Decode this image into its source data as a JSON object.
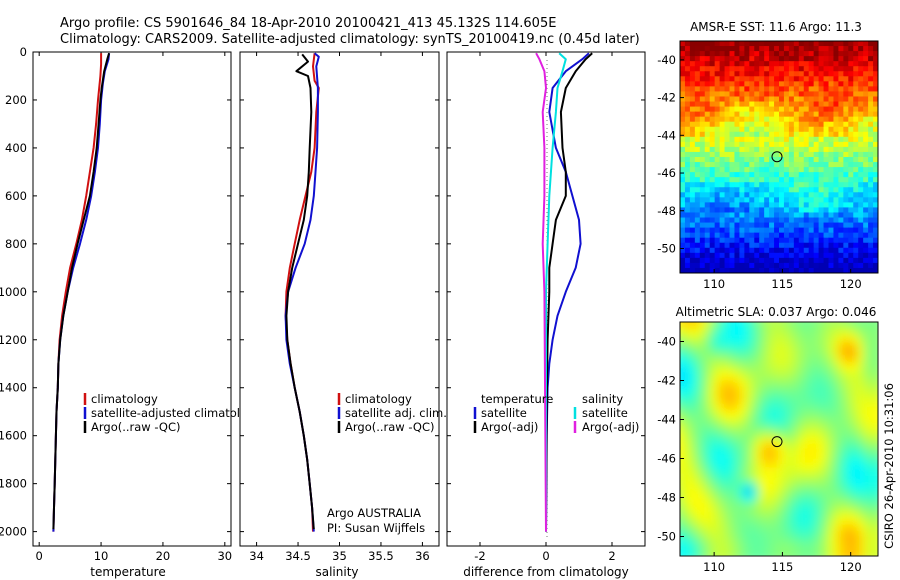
{
  "figure": {
    "title_line1": "Argo profile: CS 5901646_84 18-Apr-2010 20100421_413 45.132S 114.605E",
    "title_line2": "Climatology: CARS2009. Satellite-adjusted climatology: synTS_20100419.nc (0.45d later)",
    "side_text": "CSIRO 26-Apr-2010 10:31:06",
    "credit_line1": "Argo AUSTRALIA",
    "credit_line2": "PI: Susan Wijffels"
  },
  "colors": {
    "climatology": "#d01010",
    "satellite": "#1010d0",
    "argo": "#000000",
    "sat_sal": "#00e0e0",
    "argo_sal": "#e020e0",
    "dots": "#777777"
  },
  "chart_data": [
    {
      "type": "line",
      "xlabel": "temperature",
      "xlim": [
        -1,
        31
      ],
      "xticks": [
        0,
        10,
        20,
        30
      ],
      "ylim": [
        2060,
        0
      ],
      "yticks": [
        0,
        200,
        400,
        600,
        800,
        1000,
        1200,
        1400,
        1600,
        1800,
        2000
      ],
      "legend": [
        "climatology",
        "satellite-adjusted climatology",
        "Argo(..raw -QC)"
      ],
      "series": [
        {
          "name": "climatology",
          "color_key": "climatology",
          "points": [
            [
              10.0,
              5
            ],
            [
              10.0,
              50
            ],
            [
              9.9,
              100
            ],
            [
              9.7,
              150
            ],
            [
              9.5,
              200
            ],
            [
              9.2,
              300
            ],
            [
              8.8,
              400
            ],
            [
              8.2,
              500
            ],
            [
              7.6,
              600
            ],
            [
              6.9,
              700
            ],
            [
              6.0,
              800
            ],
            [
              5.0,
              900
            ],
            [
              4.3,
              1000
            ],
            [
              3.7,
              1100
            ],
            [
              3.3,
              1200
            ],
            [
              3.1,
              1300
            ],
            [
              3.0,
              1400
            ],
            [
              2.8,
              1500
            ],
            [
              2.7,
              1600
            ],
            [
              2.6,
              1700
            ],
            [
              2.5,
              1800
            ],
            [
              2.4,
              1900
            ],
            [
              2.3,
              2000
            ]
          ]
        },
        {
          "name": "satellite-adjusted climatology",
          "color_key": "satellite",
          "points": [
            [
              11.3,
              5
            ],
            [
              11.2,
              30
            ],
            [
              10.6,
              80
            ],
            [
              10.3,
              130
            ],
            [
              10.0,
              200
            ],
            [
              9.8,
              300
            ],
            [
              9.5,
              400
            ],
            [
              9.0,
              500
            ],
            [
              8.4,
              600
            ],
            [
              7.6,
              700
            ],
            [
              6.6,
              800
            ],
            [
              5.5,
              900
            ],
            [
              4.6,
              1000
            ],
            [
              3.9,
              1100
            ],
            [
              3.4,
              1200
            ],
            [
              3.1,
              1300
            ],
            [
              3.0,
              1400
            ],
            [
              2.8,
              1500
            ],
            [
              2.7,
              1600
            ],
            [
              2.6,
              1700
            ],
            [
              2.5,
              1800
            ],
            [
              2.4,
              1900
            ],
            [
              2.3,
              2000
            ]
          ]
        },
        {
          "name": "Argo(..raw -QC)",
          "color_key": "argo",
          "points": [
            [
              11.3,
              5
            ],
            [
              11.0,
              30
            ],
            [
              10.5,
              80
            ],
            [
              10.1,
              150
            ],
            [
              9.9,
              200
            ],
            [
              9.6,
              300
            ],
            [
              9.3,
              400
            ],
            [
              8.8,
              500
            ],
            [
              8.2,
              600
            ],
            [
              7.2,
              700
            ],
            [
              6.2,
              800
            ],
            [
              5.3,
              900
            ],
            [
              4.6,
              1000
            ],
            [
              3.9,
              1100
            ],
            [
              3.4,
              1200
            ],
            [
              3.1,
              1300
            ],
            [
              3.0,
              1400
            ],
            [
              2.8,
              1500
            ],
            [
              2.7,
              1600
            ],
            [
              2.6,
              1700
            ],
            [
              2.5,
              1800
            ],
            [
              2.4,
              1900
            ],
            [
              2.3,
              1990
            ]
          ]
        }
      ]
    },
    {
      "type": "line",
      "xlabel": "salinity",
      "xlim": [
        33.8,
        36.2
      ],
      "xticks": [
        34,
        34.5,
        35,
        35.5,
        36
      ],
      "ylim": [
        2060,
        0
      ],
      "legend": [
        "climatology",
        "satellite adj. clim.",
        "Argo(..raw -QC)"
      ],
      "series": [
        {
          "name": "climatology",
          "color_key": "climatology",
          "points": [
            [
              34.7,
              5
            ],
            [
              34.68,
              60
            ],
            [
              34.7,
              120
            ],
            [
              34.75,
              150
            ],
            [
              34.72,
              250
            ],
            [
              34.7,
              400
            ],
            [
              34.66,
              500
            ],
            [
              34.59,
              600
            ],
            [
              34.52,
              700
            ],
            [
              34.46,
              800
            ],
            [
              34.4,
              900
            ],
            [
              34.36,
              1000
            ],
            [
              34.35,
              1100
            ],
            [
              34.37,
              1200
            ],
            [
              34.41,
              1300
            ],
            [
              34.46,
              1400
            ],
            [
              34.52,
              1500
            ],
            [
              34.57,
              1600
            ],
            [
              34.61,
              1700
            ],
            [
              34.64,
              1800
            ],
            [
              34.67,
              1900
            ],
            [
              34.68,
              2000
            ]
          ]
        },
        {
          "name": "satellite adj. clim.",
          "color_key": "satellite",
          "points": [
            [
              34.7,
              5
            ],
            [
              34.75,
              20
            ],
            [
              34.72,
              60
            ],
            [
              34.74,
              150
            ],
            [
              34.74,
              250
            ],
            [
              34.73,
              400
            ],
            [
              34.71,
              500
            ],
            [
              34.69,
              600
            ],
            [
              34.65,
              700
            ],
            [
              34.58,
              800
            ],
            [
              34.47,
              900
            ],
            [
              34.38,
              1000
            ],
            [
              34.35,
              1100
            ],
            [
              34.36,
              1200
            ],
            [
              34.4,
              1300
            ],
            [
              34.46,
              1400
            ],
            [
              34.52,
              1500
            ],
            [
              34.57,
              1600
            ],
            [
              34.61,
              1700
            ],
            [
              34.64,
              1800
            ],
            [
              34.67,
              1900
            ],
            [
              34.69,
              2000
            ]
          ]
        },
        {
          "name": "Argo(..raw -QC)",
          "color_key": "argo",
          "points": [
            [
              34.55,
              10
            ],
            [
              34.62,
              40
            ],
            [
              34.48,
              80
            ],
            [
              34.62,
              100
            ],
            [
              34.65,
              150
            ],
            [
              34.66,
              250
            ],
            [
              34.64,
              400
            ],
            [
              34.63,
              500
            ],
            [
              34.61,
              600
            ],
            [
              34.57,
              700
            ],
            [
              34.5,
              800
            ],
            [
              34.43,
              900
            ],
            [
              34.38,
              1000
            ],
            [
              34.36,
              1100
            ],
            [
              34.37,
              1200
            ],
            [
              34.41,
              1300
            ],
            [
              34.46,
              1400
            ],
            [
              34.52,
              1500
            ],
            [
              34.57,
              1600
            ],
            [
              34.61,
              1700
            ],
            [
              34.64,
              1800
            ],
            [
              34.67,
              1900
            ],
            [
              34.69,
              1990
            ]
          ]
        }
      ]
    },
    {
      "type": "line",
      "xlabel": "difference from climatology",
      "xlim": [
        -3,
        3
      ],
      "xticks": [
        -2,
        0,
        2
      ],
      "ylim": [
        2060,
        0
      ],
      "legend_left_title": "temperature",
      "legend_right_title": "salinity",
      "legend": [
        "satellite",
        "Argo(-adj)",
        "satellite",
        "Argo(-adj)"
      ],
      "series": [
        {
          "name": "satellite",
          "color_key": "satellite",
          "points": [
            [
              1.3,
              5
            ],
            [
              1.1,
              30
            ],
            [
              0.6,
              80
            ],
            [
              0.2,
              150
            ],
            [
              0.1,
              250
            ],
            [
              0.3,
              400
            ],
            [
              0.6,
              500
            ],
            [
              0.8,
              600
            ],
            [
              1.0,
              700
            ],
            [
              1.05,
              800
            ],
            [
              0.9,
              900
            ],
            [
              0.6,
              1000
            ],
            [
              0.35,
              1100
            ],
            [
              0.2,
              1200
            ],
            [
              0.1,
              1300
            ],
            [
              0.05,
              1400
            ],
            [
              0.02,
              1600
            ],
            [
              0.0,
              2000
            ]
          ]
        },
        {
          "name": "Argo(-adj)",
          "color_key": "argo",
          "points": [
            [
              1.4,
              5
            ],
            [
              1.2,
              30
            ],
            [
              0.9,
              80
            ],
            [
              0.6,
              150
            ],
            [
              0.45,
              250
            ],
            [
              0.5,
              400
            ],
            [
              0.6,
              500
            ],
            [
              0.6,
              600
            ],
            [
              0.3,
              700
            ],
            [
              0.2,
              800
            ],
            [
              0.1,
              900
            ],
            [
              0.1,
              1000
            ],
            [
              0.05,
              1200
            ],
            [
              0.02,
              1500
            ],
            [
              0.0,
              2000
            ]
          ]
        },
        {
          "name": "satellite",
          "color_key": "sat_sal",
          "points": [
            [
              0.4,
              5
            ],
            [
              0.6,
              30
            ],
            [
              0.5,
              80
            ],
            [
              0.35,
              150
            ],
            [
              0.3,
              250
            ],
            [
              0.2,
              400
            ],
            [
              0.1,
              600
            ],
            [
              0.05,
              800
            ],
            [
              0.0,
              1000
            ],
            [
              0.0,
              2000
            ]
          ]
        },
        {
          "name": "Argo(-adj)",
          "color_key": "argo_sal",
          "points": [
            [
              -0.3,
              5
            ],
            [
              -0.2,
              30
            ],
            [
              -0.05,
              80
            ],
            [
              0.0,
              150
            ],
            [
              -0.1,
              250
            ],
            [
              -0.05,
              400
            ],
            [
              -0.05,
              600
            ],
            [
              -0.1,
              800
            ],
            [
              -0.05,
              1000
            ],
            [
              0.0,
              2000
            ]
          ]
        }
      ]
    },
    {
      "type": "heatmap",
      "title": "AMSR-E SST: 11.6 Argo: 11.3",
      "xlim": [
        107.5,
        122
      ],
      "ylim": [
        -51.3,
        -39
      ],
      "xticks": [
        110,
        115,
        120
      ],
      "yticks": [
        -40,
        -42,
        -44,
        -46,
        -48,
        -50
      ],
      "marker": [
        114.605,
        -45.132
      ]
    },
    {
      "type": "heatmap",
      "title": "Altimetric SLA: 0.037 Argo: 0.046",
      "xlim": [
        107.5,
        122
      ],
      "ylim": [
        -51.0,
        -39
      ],
      "xticks": [
        110,
        115,
        120
      ],
      "yticks": [
        -40,
        -42,
        -44,
        -46,
        -48,
        -50
      ],
      "marker": [
        114.605,
        -45.132
      ]
    }
  ]
}
